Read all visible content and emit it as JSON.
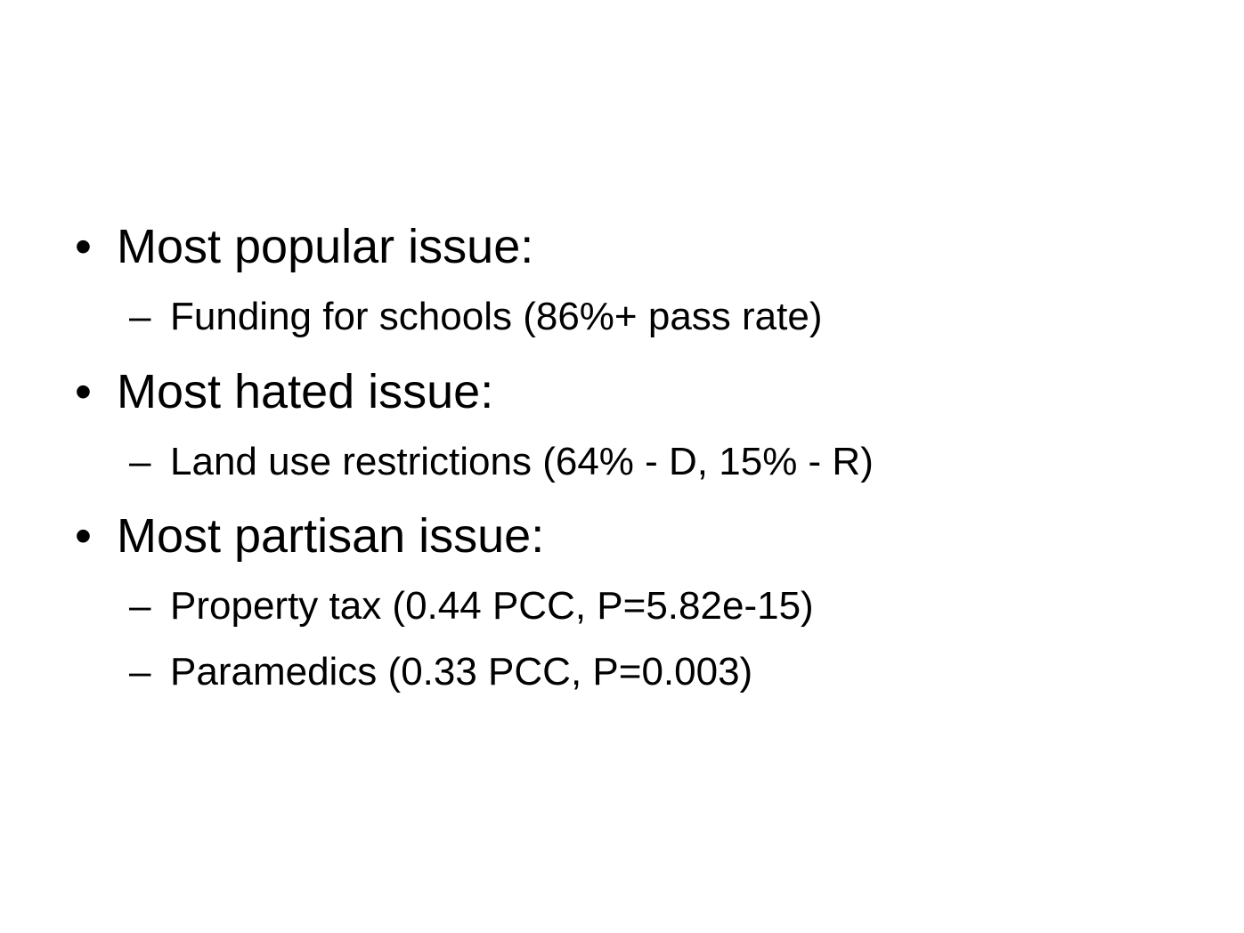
{
  "slide": {
    "bullet_marker": "•",
    "sub_marker": "–",
    "items": [
      {
        "text": "Most popular issue:",
        "subitems": [
          {
            "text": "Funding for schools (86%+ pass rate)"
          }
        ]
      },
      {
        "text": "Most hated issue:",
        "subitems": [
          {
            "text": "Land use restrictions (64% - D, 15% - R)"
          }
        ]
      },
      {
        "text": "Most partisan issue:",
        "subitems": [
          {
            "text": "Property tax (0.44 PCC, P=5.82e-15)"
          },
          {
            "text": "Paramedics (0.33 PCC, P=0.003)"
          }
        ]
      }
    ]
  }
}
